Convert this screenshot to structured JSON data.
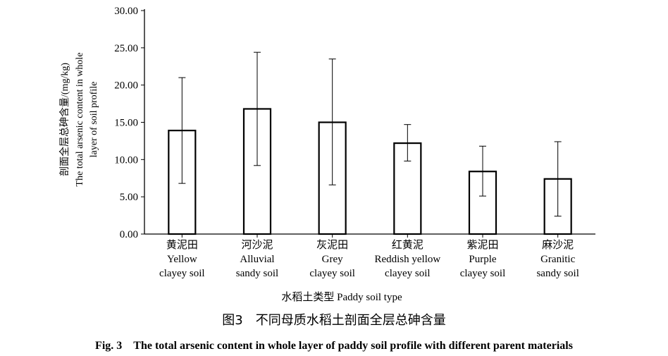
{
  "chart_data": {
    "type": "bar",
    "categories": [
      [
        "黄泥田",
        "Yellow",
        "clayey soil"
      ],
      [
        "河沙泥",
        "Alluvial",
        "sandy soil"
      ],
      [
        "灰泥田",
        "Grey",
        "clayey soil"
      ],
      [
        "红黄泥",
        "Reddish yellow",
        "clayey soil"
      ],
      [
        "紫泥田",
        "Purple",
        "clayey soil"
      ],
      [
        "麻沙泥",
        "Granitic",
        "sandy soil"
      ]
    ],
    "values": [
      13.9,
      16.8,
      15.0,
      12.2,
      8.4,
      7.4
    ],
    "error_low": [
      6.8,
      9.2,
      6.6,
      9.8,
      5.1,
      2.4
    ],
    "error_high": [
      21.0,
      24.4,
      23.5,
      14.7,
      11.8,
      12.4
    ],
    "ylim": [
      0,
      30
    ],
    "yticks": [
      "0.00",
      "5.00",
      "10.00",
      "15.00",
      "20.00",
      "25.00",
      "30.00"
    ],
    "ylabel_lines": [
      "剖面全层总砷含量/(mg/kg)",
      "The total arsenic content in whole",
      "layer of soil profile"
    ],
    "xlabel": "水稻土类型 Paddy soil type",
    "grid": false
  },
  "caption": {
    "cn": "图3　不同母质水稻土剖面全层总砷含量",
    "en": "Fig. 3　The total arsenic content in whole layer of paddy soil profile with different parent materials"
  }
}
